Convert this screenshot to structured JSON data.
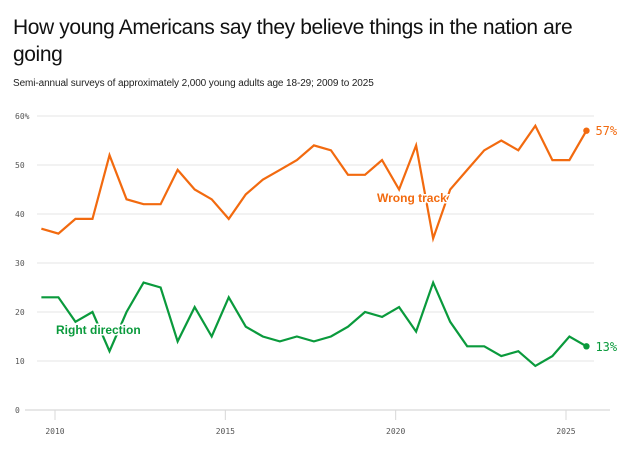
{
  "header": {
    "title": "How young Americans say they believe things in the nation are going",
    "subtitle": "Semi-annual surveys of approximately 2,000 young adults age 18-29; 2009 to 2025"
  },
  "chart_data": {
    "type": "line",
    "title": "How young Americans say they believe things in the nation are going",
    "subtitle": "Semi-annual surveys of approximately 2,000 young adults age 18-29; 2009 to 2025",
    "xlabel": "",
    "ylabel": "",
    "xlim": [
      2009.6,
      2025.9
    ],
    "ylim": [
      0,
      60
    ],
    "grid": true,
    "x_ticks": [
      2010,
      2015,
      2020,
      2025
    ],
    "x_tick_labels": [
      "2010",
      "2015",
      "2020",
      "2025"
    ],
    "y_ticks": [
      0,
      10,
      20,
      30,
      40,
      50,
      60
    ],
    "y_tick_labels": [
      "0",
      "10",
      "20",
      "30",
      "40",
      "50",
      "60%"
    ],
    "x": [
      2009.6,
      2010.1,
      2010.6,
      2011.1,
      2011.6,
      2012.1,
      2012.6,
      2013.1,
      2013.6,
      2014.1,
      2014.6,
      2015.1,
      2015.6,
      2016.1,
      2016.6,
      2017.1,
      2017.6,
      2018.1,
      2018.6,
      2019.1,
      2019.6,
      2020.1,
      2020.6,
      2021.1,
      2021.6,
      2022.1,
      2022.6,
      2023.1,
      2023.6,
      2024.1,
      2024.6,
      2025.1,
      2025.6
    ],
    "series": [
      {
        "name": "Wrong track",
        "color": "#f26a0f",
        "label": "Wrong track",
        "end_label": "57%",
        "values": [
          37,
          36,
          39,
          39,
          52,
          43,
          42,
          42,
          49,
          45,
          43,
          39,
          44,
          47,
          49,
          51,
          54,
          53,
          48,
          48,
          51,
          45,
          54,
          35,
          45,
          49,
          53,
          55,
          53,
          58,
          51,
          51,
          57
        ]
      },
      {
        "name": "Right direction",
        "color": "#0a9a3c",
        "label": "Right direction",
        "end_label": "13%",
        "values": [
          23,
          23,
          18,
          20,
          12,
          20,
          26,
          25,
          14,
          21,
          15,
          23,
          17,
          15,
          14,
          15,
          14,
          15,
          17,
          20,
          19,
          21,
          16,
          26,
          18,
          13,
          13,
          11,
          12,
          9,
          11,
          15,
          13
        ]
      }
    ],
    "legend": "inline-labels"
  }
}
